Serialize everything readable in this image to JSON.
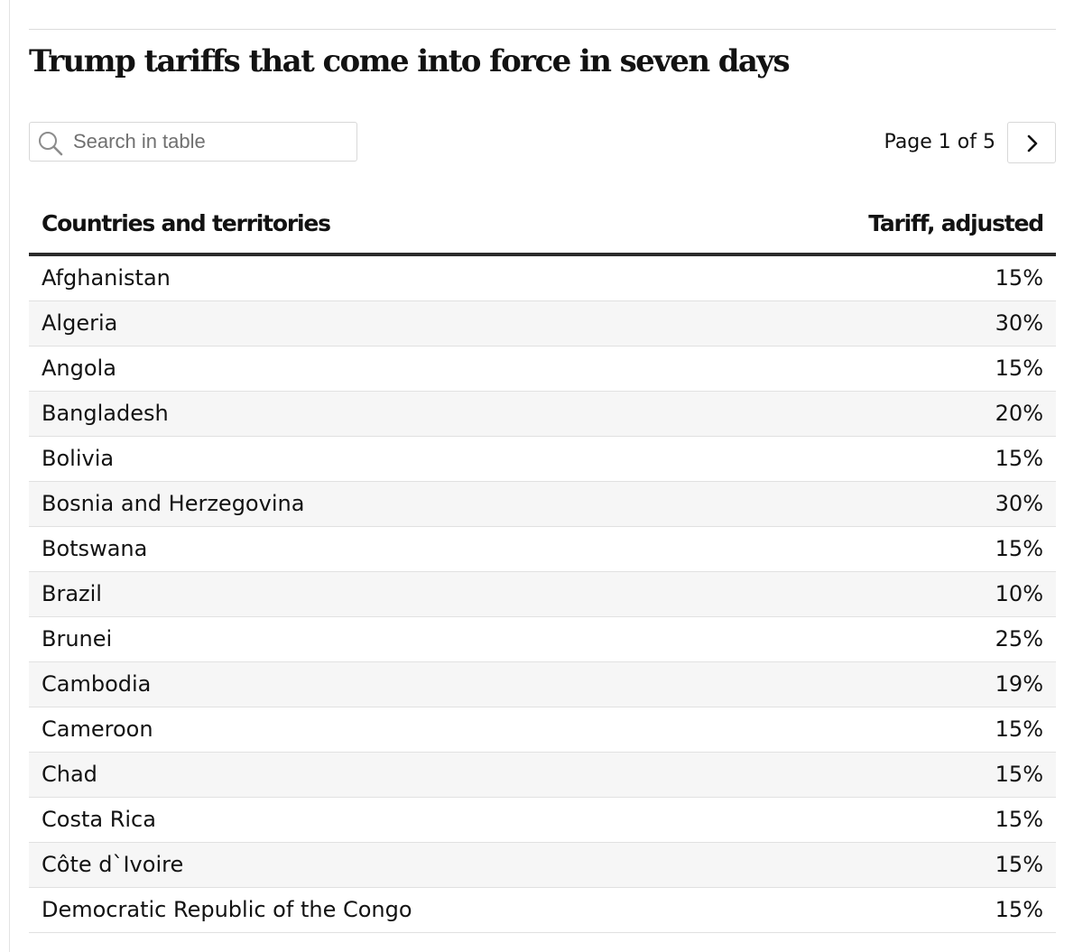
{
  "title": "Trump tariffs that come into force in seven days",
  "search": {
    "placeholder": "Search in table",
    "value": "",
    "icon": "search-icon"
  },
  "pagination": {
    "label": "Page 1 of 5",
    "current_page": 1,
    "total_pages": 5,
    "next_icon": "chevron-right-icon"
  },
  "table": {
    "columns": [
      "Countries and territories",
      "Tariff, adjusted"
    ],
    "rows": [
      {
        "country": "Afghanistan",
        "tariff": "15%"
      },
      {
        "country": "Algeria",
        "tariff": "30%"
      },
      {
        "country": "Angola",
        "tariff": "15%"
      },
      {
        "country": "Bangladesh",
        "tariff": "20%"
      },
      {
        "country": "Bolivia",
        "tariff": "15%"
      },
      {
        "country": "Bosnia and Herzegovina",
        "tariff": "30%"
      },
      {
        "country": "Botswana",
        "tariff": "15%"
      },
      {
        "country": "Brazil",
        "tariff": "10%"
      },
      {
        "country": "Brunei",
        "tariff": "25%"
      },
      {
        "country": "Cambodia",
        "tariff": "19%"
      },
      {
        "country": "Cameroon",
        "tariff": "15%"
      },
      {
        "country": "Chad",
        "tariff": "15%"
      },
      {
        "country": "Costa Rica",
        "tariff": "15%"
      },
      {
        "country": "Côte d`Ivoire",
        "tariff": "15%"
      },
      {
        "country": "Democratic Republic of the Congo",
        "tariff": "15%"
      }
    ]
  },
  "colors": {
    "text": "#121212",
    "header_rule": "#2b2b2b",
    "row_alt": "#f6f6f6",
    "row_border": "#e1e1e1",
    "control_border": "#d8d8d8"
  }
}
